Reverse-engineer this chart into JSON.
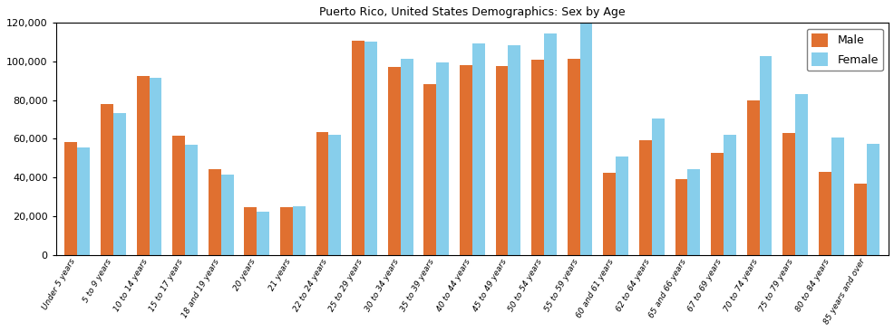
{
  "title": "Puerto Rico, United States Demographics: Sex by Age",
  "categories": [
    "Under 5 years",
    "5 to 9 years",
    "10 to 14 years",
    "15 to 17 years",
    "18 and 19 years",
    "20 years",
    "21 years",
    "22 to 24 years",
    "25 to 29 years",
    "30 to 34 years",
    "35 to 39 years",
    "40 to 44 years",
    "45 to 49 years",
    "50 to 54 years",
    "55 to 59 years",
    "60 and 61 years",
    "62 to 64 years",
    "65 and 66 years",
    "67 to 69 years",
    "70 to 74 years",
    "75 to 79 years",
    "80 to 84 years",
    "85 years and over"
  ],
  "male": [
    58500,
    78000,
    92500,
    61500,
    44500,
    24500,
    24500,
    63500,
    111000,
    97000,
    88500,
    98000,
    97500,
    101000,
    101500,
    42500,
    59500,
    39000,
    52500,
    80000,
    63000,
    43000,
    37000
  ],
  "female": [
    55500,
    73500,
    91500,
    57000,
    41500,
    22500,
    25000,
    62000,
    110500,
    101500,
    99500,
    109500,
    108500,
    114500,
    119500,
    51000,
    70500,
    44500,
    62000,
    103000,
    83000,
    60500,
    57500
  ],
  "male_color": "#E07030",
  "female_color": "#87CEEB",
  "ylim": [
    0,
    120000
  ],
  "yticks": [
    0,
    20000,
    40000,
    60000,
    80000,
    100000,
    120000
  ],
  "ytick_labels": [
    "0",
    "20,000",
    "40,000",
    "60,000",
    "80,000",
    "100,000",
    "120,000"
  ],
  "figsize": [
    9.87,
    3.67
  ],
  "dpi": 100,
  "bar_width": 0.35,
  "legend_labels": [
    "Male",
    "Female"
  ]
}
